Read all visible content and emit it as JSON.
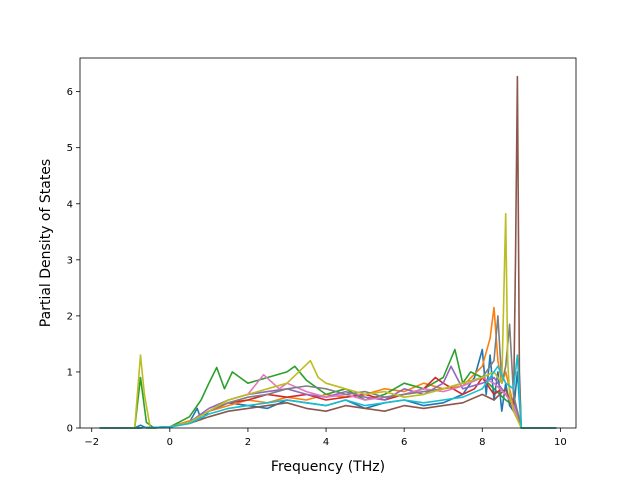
{
  "chart_data": {
    "type": "line",
    "title": "",
    "xlabel": "Frequency (THz)",
    "ylabel": "Partial Density of States",
    "xlim": [
      -2.3,
      10.4
    ],
    "ylim": [
      0,
      6.6
    ],
    "x_ticks": [
      -2,
      0,
      2,
      4,
      6,
      8,
      10
    ],
    "y_ticks": [
      0,
      1,
      2,
      3,
      4,
      5,
      6
    ],
    "x_tick_labels": [
      "−2",
      "0",
      "2",
      "4",
      "6",
      "8",
      "10"
    ],
    "y_tick_labels": [
      "0",
      "1",
      "2",
      "3",
      "4",
      "5",
      "6"
    ],
    "grid": false,
    "legend": "none",
    "colors": [
      "#1f77b4",
      "#ff7f0e",
      "#2ca02c",
      "#d62728",
      "#9467bd",
      "#8c564b",
      "#e377c2",
      "#7f7f7f",
      "#bcbd22",
      "#17becf"
    ],
    "series": [
      {
        "color": "#1f77b4",
        "x": [
          -1.8,
          -0.9,
          -0.75,
          -0.6,
          -0.4,
          0.0,
          0.5,
          0.7,
          0.8,
          1.0,
          1.5,
          2.0,
          2.5,
          3.0,
          3.5,
          4.0,
          4.5,
          5.0,
          5.5,
          6.0,
          6.5,
          7.0,
          7.5,
          7.8,
          8.0,
          8.1,
          8.2,
          8.3,
          8.4,
          8.5,
          8.6,
          8.7,
          8.8,
          8.9,
          9.0,
          9.3,
          9.9
        ],
        "y": [
          0,
          0,
          0.05,
          0,
          0,
          0.02,
          0.1,
          0.35,
          0.15,
          0.3,
          0.45,
          0.4,
          0.35,
          0.5,
          0.45,
          0.4,
          0.5,
          0.35,
          0.45,
          0.5,
          0.4,
          0.45,
          0.6,
          0.9,
          1.4,
          0.6,
          1.3,
          0.5,
          1.0,
          0.3,
          0.8,
          0.4,
          0.3,
          1.0,
          0,
          0,
          0
        ]
      },
      {
        "color": "#ff7f0e",
        "x": [
          -1.8,
          -0.9,
          0.0,
          0.6,
          1.0,
          1.5,
          2.0,
          2.5,
          3.0,
          3.5,
          4.0,
          4.5,
          5.0,
          5.5,
          6.0,
          6.5,
          7.0,
          7.5,
          8.0,
          8.2,
          8.3,
          8.4,
          8.5,
          8.6,
          8.8,
          9.0,
          9.9
        ],
        "y": [
          0,
          0,
          0.02,
          0.15,
          0.3,
          0.4,
          0.5,
          0.45,
          0.55,
          0.5,
          0.6,
          0.55,
          0.6,
          0.7,
          0.65,
          0.8,
          0.7,
          0.75,
          1.1,
          1.6,
          2.15,
          1.2,
          0.8,
          1.0,
          0.4,
          0,
          0
        ]
      },
      {
        "color": "#2ca02c",
        "x": [
          -1.8,
          -0.9,
          -0.75,
          -0.6,
          -0.4,
          0.0,
          0.5,
          0.8,
          1.0,
          1.2,
          1.4,
          1.6,
          2.0,
          2.5,
          3.0,
          3.2,
          3.5,
          4.0,
          4.5,
          5.0,
          5.5,
          6.0,
          6.5,
          7.0,
          7.3,
          7.5,
          7.7,
          8.0,
          8.3,
          8.6,
          8.8,
          9.0,
          9.9
        ],
        "y": [
          0,
          0,
          0.9,
          0.1,
          0,
          0.02,
          0.2,
          0.5,
          0.8,
          1.08,
          0.7,
          1.0,
          0.8,
          0.9,
          1.0,
          1.1,
          0.85,
          0.6,
          0.7,
          0.5,
          0.6,
          0.8,
          0.7,
          0.9,
          1.4,
          0.8,
          1.0,
          0.9,
          0.7,
          0.5,
          0.4,
          0,
          0
        ]
      },
      {
        "color": "#d62728",
        "x": [
          -1.8,
          -0.9,
          0.0,
          0.5,
          1.0,
          1.5,
          2.0,
          2.5,
          3.0,
          3.5,
          4.0,
          4.5,
          5.0,
          5.5,
          6.0,
          6.5,
          6.8,
          7.0,
          7.5,
          7.8,
          8.0,
          8.3,
          8.5,
          8.7,
          8.9,
          9.0,
          9.9
        ],
        "y": [
          0,
          0,
          0.02,
          0.1,
          0.3,
          0.45,
          0.5,
          0.6,
          0.55,
          0.6,
          0.5,
          0.55,
          0.6,
          0.5,
          0.6,
          0.7,
          0.9,
          0.8,
          0.6,
          0.7,
          0.9,
          0.6,
          0.7,
          0.5,
          0.3,
          0,
          0
        ]
      },
      {
        "color": "#9467bd",
        "x": [
          -1.8,
          -0.9,
          0.0,
          0.5,
          1.0,
          1.5,
          2.0,
          2.5,
          3.0,
          3.5,
          4.0,
          4.5,
          5.0,
          5.5,
          6.0,
          6.5,
          7.0,
          7.2,
          7.5,
          8.0,
          8.3,
          8.6,
          8.8,
          9.0,
          9.9
        ],
        "y": [
          0,
          0,
          0.02,
          0.1,
          0.35,
          0.5,
          0.6,
          0.65,
          0.7,
          0.6,
          0.55,
          0.65,
          0.55,
          0.5,
          0.7,
          0.6,
          0.8,
          1.1,
          0.7,
          0.8,
          0.9,
          0.6,
          0.5,
          0,
          0
        ]
      },
      {
        "color": "#8c564b",
        "x": [
          -1.8,
          -0.9,
          0.0,
          0.5,
          1.0,
          1.5,
          2.0,
          2.5,
          3.0,
          3.5,
          4.0,
          4.5,
          5.0,
          5.5,
          6.0,
          6.5,
          7.0,
          7.5,
          8.0,
          8.3,
          8.6,
          8.8,
          8.85,
          8.9,
          8.95,
          9.0,
          9.9
        ],
        "y": [
          0,
          0,
          0.02,
          0.08,
          0.2,
          0.3,
          0.35,
          0.4,
          0.45,
          0.35,
          0.3,
          0.4,
          0.35,
          0.3,
          0.4,
          0.35,
          0.4,
          0.45,
          0.6,
          0.5,
          0.7,
          0.3,
          3.0,
          6.27,
          1.0,
          0,
          0
        ]
      },
      {
        "color": "#e377c2",
        "x": [
          -1.8,
          -0.9,
          0.0,
          0.5,
          1.0,
          1.5,
          2.0,
          2.4,
          2.8,
          3.0,
          3.5,
          4.0,
          4.5,
          5.0,
          5.5,
          6.0,
          6.5,
          7.0,
          7.5,
          8.0,
          8.3,
          8.6,
          8.8,
          9.0,
          9.9
        ],
        "y": [
          0,
          0,
          0.02,
          0.1,
          0.3,
          0.5,
          0.6,
          0.95,
          0.7,
          0.8,
          0.65,
          0.55,
          0.6,
          0.5,
          0.55,
          0.6,
          0.7,
          0.65,
          0.75,
          0.9,
          0.8,
          0.6,
          0.4,
          0,
          0
        ]
      },
      {
        "color": "#7f7f7f",
        "x": [
          -1.8,
          -0.9,
          0.0,
          0.5,
          1.0,
          1.5,
          2.0,
          2.5,
          3.0,
          3.5,
          4.0,
          4.5,
          5.0,
          5.5,
          6.0,
          6.5,
          7.0,
          7.5,
          8.0,
          8.3,
          8.4,
          8.5,
          8.6,
          8.7,
          8.8,
          9.0,
          9.9
        ],
        "y": [
          0,
          0,
          0.02,
          0.1,
          0.3,
          0.45,
          0.55,
          0.6,
          0.7,
          0.75,
          0.7,
          0.6,
          0.65,
          0.55,
          0.6,
          0.65,
          0.7,
          0.8,
          0.9,
          1.2,
          2.0,
          0.8,
          1.1,
          1.85,
          0.6,
          0,
          0
        ]
      },
      {
        "color": "#bcbd22",
        "x": [
          -1.8,
          -0.9,
          -0.75,
          -0.65,
          -0.5,
          0.0,
          0.5,
          1.0,
          1.5,
          2.0,
          2.5,
          3.0,
          3.3,
          3.6,
          3.8,
          4.0,
          4.5,
          5.0,
          5.5,
          6.0,
          6.5,
          7.0,
          7.5,
          8.0,
          8.3,
          8.5,
          8.6,
          8.65,
          8.7,
          8.8,
          9.0,
          9.9
        ],
        "y": [
          0,
          0,
          1.3,
          0.6,
          0,
          0.02,
          0.1,
          0.3,
          0.5,
          0.6,
          0.7,
          0.8,
          1.0,
          1.2,
          0.9,
          0.8,
          0.7,
          0.6,
          0.65,
          0.55,
          0.6,
          0.7,
          0.8,
          0.9,
          1.0,
          0.8,
          3.82,
          1.2,
          0.6,
          0.3,
          0,
          0
        ]
      },
      {
        "color": "#17becf",
        "x": [
          -1.8,
          -0.9,
          0.0,
          0.5,
          1.0,
          1.5,
          2.0,
          2.5,
          3.0,
          3.5,
          4.0,
          4.5,
          5.0,
          5.5,
          6.0,
          6.5,
          7.0,
          7.5,
          8.0,
          8.2,
          8.4,
          8.6,
          8.8,
          8.9,
          9.0,
          9.9
        ],
        "y": [
          0,
          0,
          0.02,
          0.08,
          0.25,
          0.35,
          0.4,
          0.45,
          0.5,
          0.45,
          0.4,
          0.5,
          0.4,
          0.45,
          0.5,
          0.45,
          0.5,
          0.55,
          0.7,
          0.9,
          1.1,
          0.8,
          0.7,
          1.3,
          0,
          0
        ]
      }
    ]
  }
}
